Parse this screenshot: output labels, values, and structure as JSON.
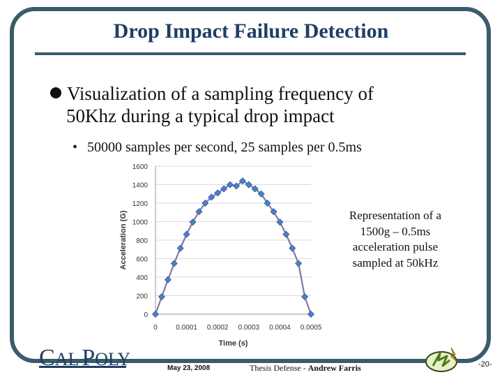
{
  "slide": {
    "title": "Drop Impact Failure Detection",
    "bullet1_line1": "Visualization of a sampling frequency of",
    "bullet1_line2": "50Khz during a typical drop impact",
    "bullet2": "50000 samples per second, 25 samples per 0.5ms",
    "bullet2_marker": "•",
    "caption_lines": [
      "Representation of a",
      "1500g – 0.5ms",
      "acceleration pulse",
      "sampled at 50kHz"
    ]
  },
  "footer": {
    "logo_first_cap": "C",
    "logo_first_rest": "AL",
    "logo_second_cap": "P",
    "logo_second_rest": "OLY",
    "date": "May 23, 2008",
    "thesis_prefix": "Thesis Defense - ",
    "author": "Andrew Farris",
    "page": "-20-"
  },
  "chart_data": {
    "type": "line",
    "xlabel": "Time (s)",
    "ylabel": "Acceleration (G)",
    "xlim": [
      0,
      0.0005
    ],
    "ylim": [
      0,
      1600
    ],
    "xticks": [
      0,
      0.0001,
      0.0002,
      0.0003,
      0.0004,
      0.0005
    ],
    "xtick_labels": [
      "0",
      "0.0001",
      "0.0002",
      "0.0003",
      "0.0004",
      "0.0005"
    ],
    "yticks": [
      0,
      200,
      400,
      600,
      800,
      1000,
      1200,
      1400,
      1600
    ],
    "ytick_labels": [
      "0",
      "200",
      "400",
      "600",
      "800",
      "1000",
      "1200",
      "1400",
      "1600"
    ],
    "grid": "horizontal",
    "series": [
      {
        "x": [
          0,
          2e-05,
          4e-05,
          6e-05,
          8e-05,
          0.0001,
          0.00012,
          0.00014,
          0.00016,
          0.00018,
          0.0002,
          0.00022,
          0.00024,
          0.00026,
          0.00028,
          0.0003,
          0.00032,
          0.00034,
          0.00036,
          0.00038,
          0.0004,
          0.00042,
          0.00044,
          0.00046,
          0.00048,
          0.0005
        ],
        "y": [
          0,
          188,
          372,
          548,
          713,
          863,
          995,
          1108,
          1200,
          1265,
          1310,
          1355,
          1400,
          1385,
          1440,
          1400,
          1355,
          1300,
          1200,
          1108,
          995,
          863,
          713,
          548,
          188,
          0
        ]
      }
    ],
    "colors": {
      "line": "#7a7aa6",
      "marker": "#4f7fc4",
      "marker_edge": "#2e5e9e",
      "grid": "#d9d9d9"
    }
  }
}
